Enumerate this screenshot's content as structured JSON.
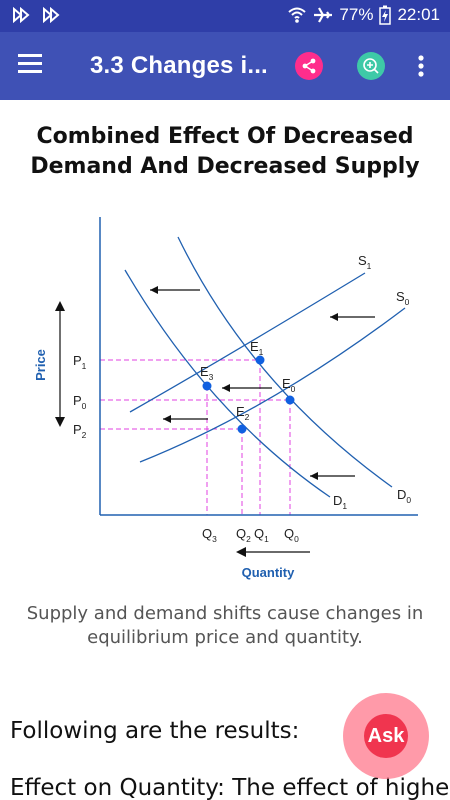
{
  "status_bar": {
    "battery": "77%",
    "time": "22:01",
    "icons": [
      "notification-icon",
      "notification-icon",
      "wifi-icon",
      "airplane-icon",
      "battery-icon"
    ]
  },
  "app_bar": {
    "title": "3.3 Changes i...",
    "icons": [
      "menu-icon",
      "share-icon",
      "zoom-in-icon",
      "more-vert-icon"
    ],
    "colors": {
      "bar": "#3f51b5",
      "status": "#2f3ea8",
      "share": "#ff2d8c",
      "zoom": "#3ec9a7"
    }
  },
  "article": {
    "heading_line1": "Combined Effect Of Decreased",
    "heading_line2": "Demand And Decreased Supply",
    "caption_line1": "Supply and demand shifts cause changes in",
    "caption_line2": "equilibrium price and quantity.",
    "para1": "Following are the results:",
    "para2": "Effect on Quantity: The effect of higher"
  },
  "ask_button": {
    "label": "Ask"
  },
  "chart_data": {
    "type": "line",
    "title": "",
    "xlabel": "Quantity",
    "ylabel": "Price",
    "series": [
      {
        "name": "S1"
      },
      {
        "name": "S0"
      },
      {
        "name": "D0"
      },
      {
        "name": "D1"
      }
    ],
    "points": [
      {
        "name": "E1",
        "base": "E",
        "sub": "1"
      },
      {
        "name": "E0",
        "base": "E",
        "sub": "0"
      },
      {
        "name": "E3",
        "base": "E",
        "sub": "3"
      },
      {
        "name": "E2",
        "base": "E",
        "sub": "2"
      }
    ],
    "price_ticks": [
      {
        "base": "P",
        "sub": "1"
      },
      {
        "base": "P",
        "sub": "0"
      },
      {
        "base": "P",
        "sub": "2"
      }
    ],
    "quantity_ticks": [
      {
        "base": "Q",
        "sub": "3"
      },
      {
        "base": "Q",
        "sub": "2"
      },
      {
        "base": "Q",
        "sub": "1"
      },
      {
        "base": "Q",
        "sub": "0"
      }
    ],
    "curve_labels": [
      {
        "base": "S",
        "sub": "1"
      },
      {
        "base": "S",
        "sub": "0"
      },
      {
        "base": "D",
        "sub": "1"
      },
      {
        "base": "D",
        "sub": "0"
      }
    ],
    "shift_direction": "left",
    "colors": {
      "curve": "#2060b0",
      "guide": "#e040e0",
      "point": "#1060e0",
      "axis_label": "#2060b0"
    }
  }
}
